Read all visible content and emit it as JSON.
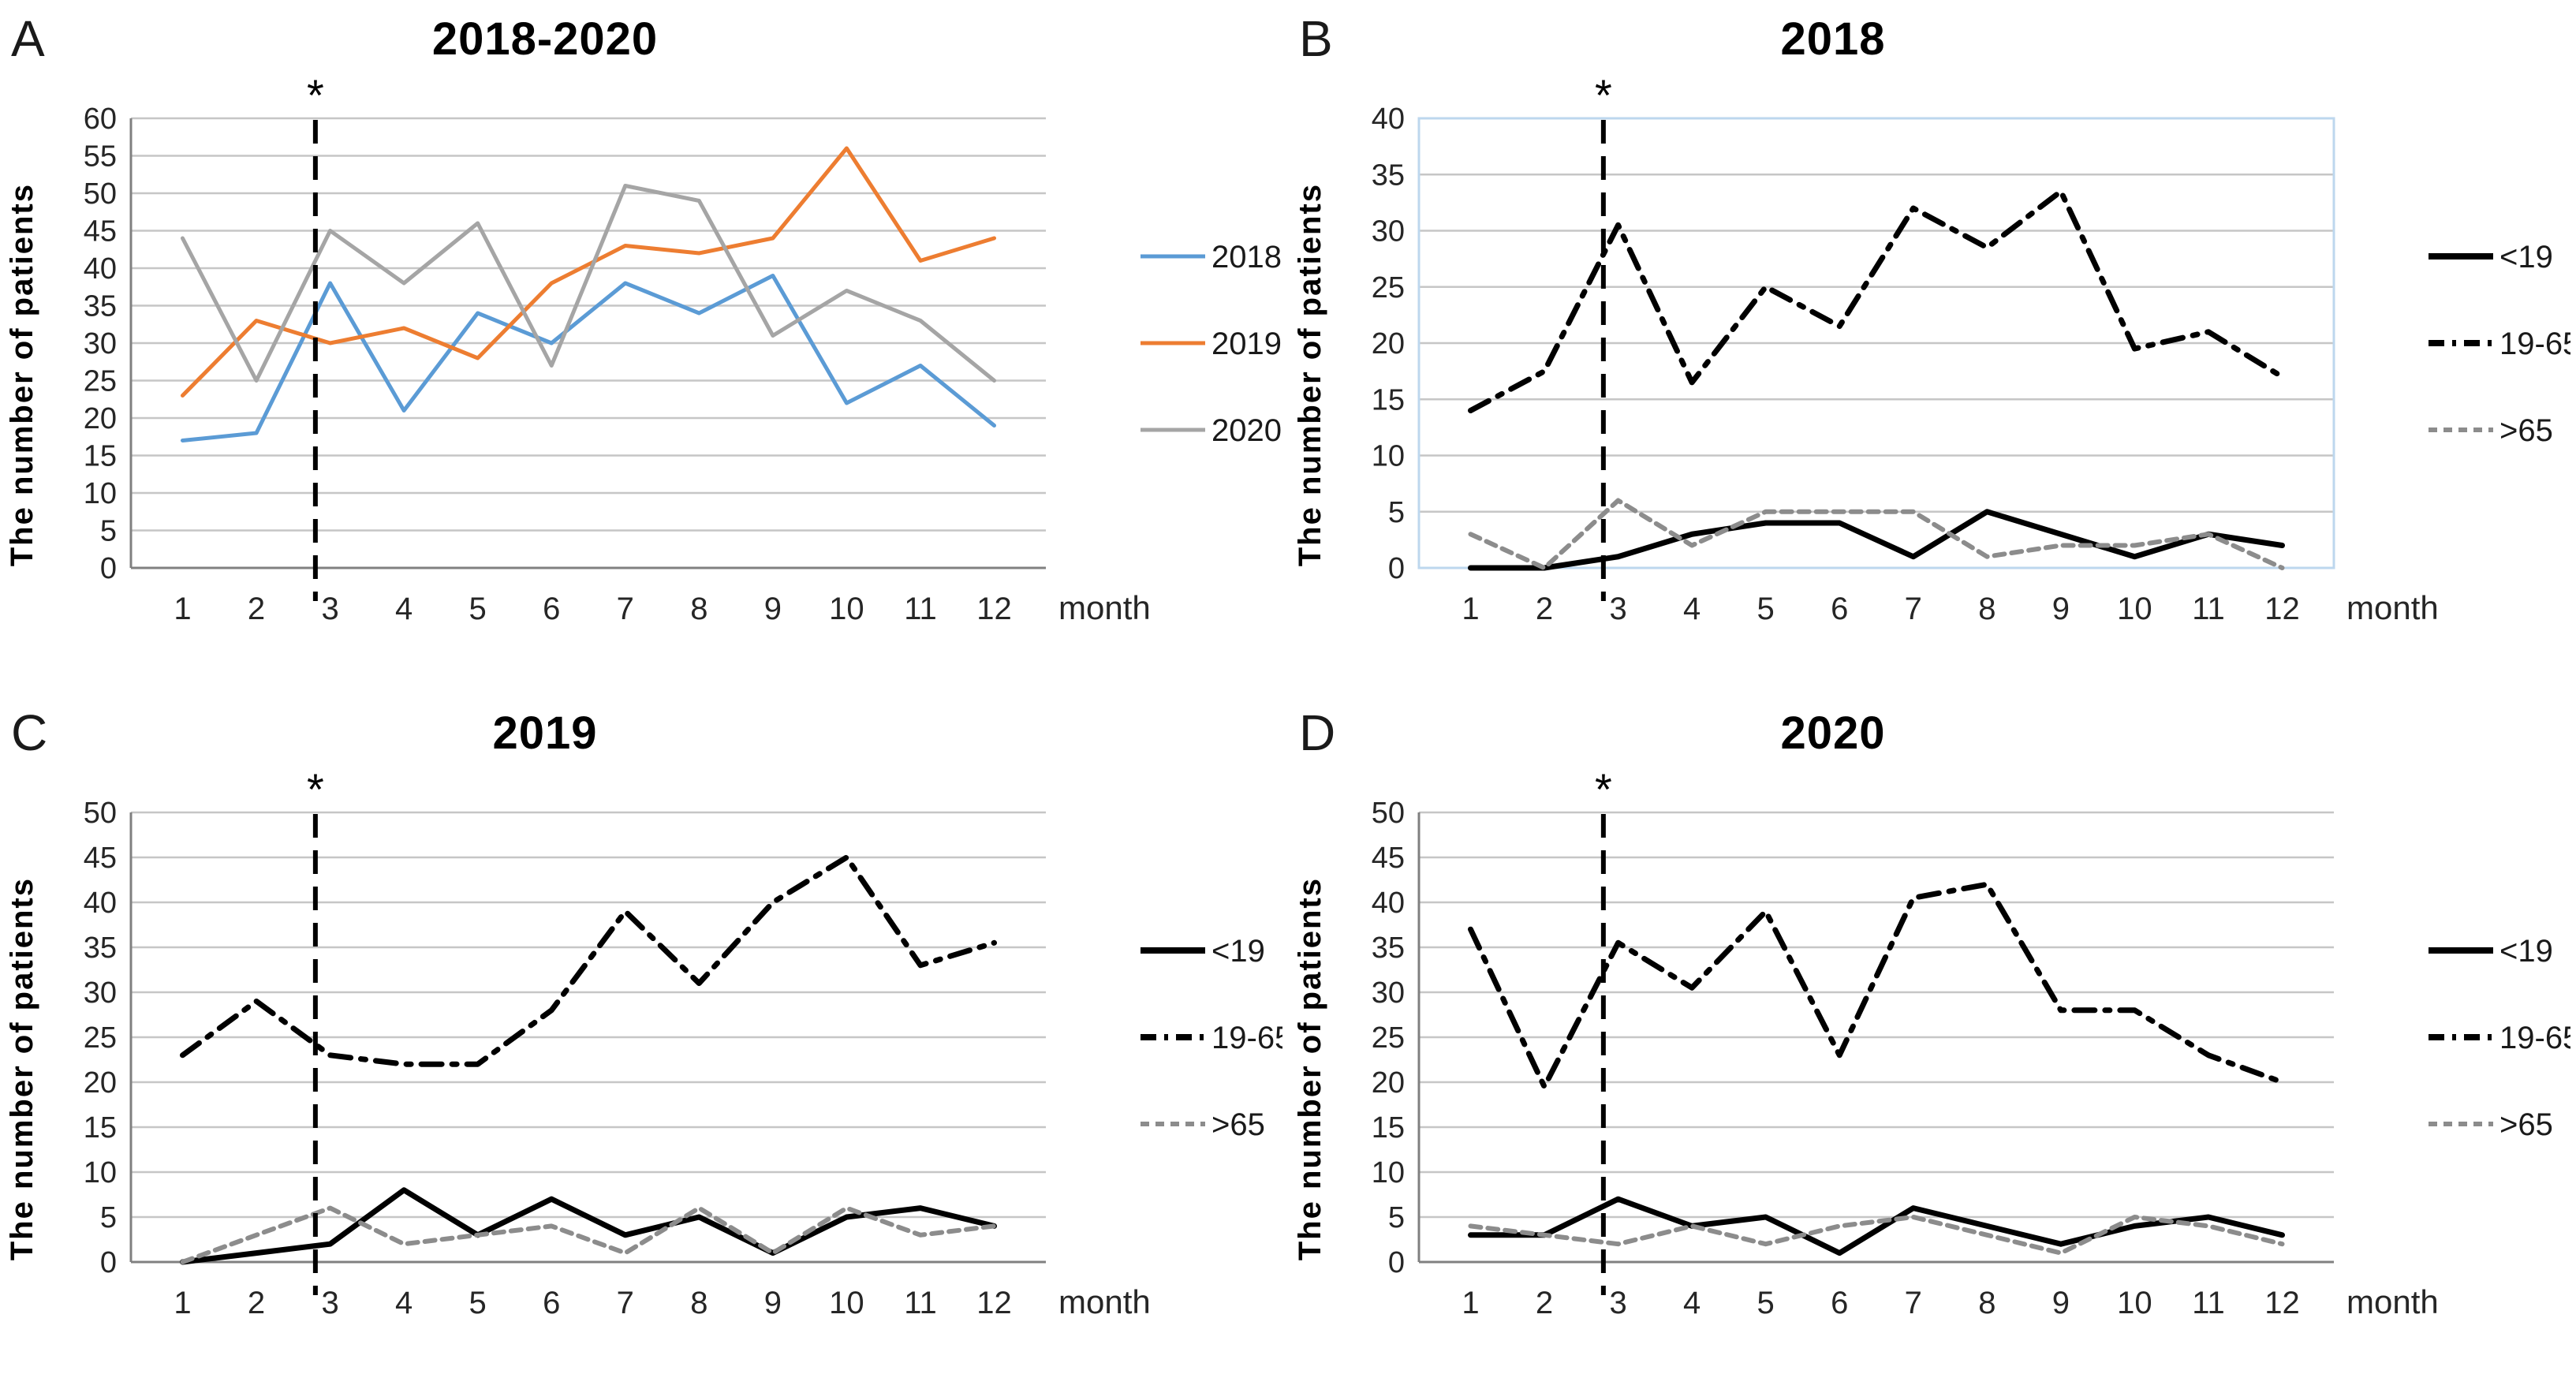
{
  "chart_data": [
    {
      "panel": "A",
      "type": "line",
      "title": "2018-2020",
      "ylabel": "The number of patients",
      "xlabel": "month",
      "x": [
        "1",
        "2",
        "3",
        "4",
        "5",
        "6",
        "7",
        "8",
        "9",
        "10",
        "11",
        "12"
      ],
      "ylim": [
        0,
        60
      ],
      "ytick_step": 5,
      "grid": true,
      "legend_position": "right",
      "annotation": {
        "type": "dashed-vertical-line",
        "x": 2.8,
        "label": "*"
      },
      "series": [
        {
          "name": "2018",
          "color": "#5B9BD5",
          "dash": "solid",
          "values": [
            17,
            18,
            38,
            21,
            34,
            30,
            38,
            34,
            39,
            22,
            27,
            19
          ]
        },
        {
          "name": "2019",
          "color": "#ED7D31",
          "dash": "solid",
          "values": [
            23,
            33,
            30,
            32,
            28,
            38,
            43,
            42,
            44,
            56,
            41,
            44
          ]
        },
        {
          "name": "2020",
          "color": "#A5A5A5",
          "dash": "solid",
          "values": [
            44,
            25,
            45,
            38,
            46,
            27,
            51,
            49,
            31,
            37,
            33,
            25
          ]
        }
      ]
    },
    {
      "panel": "B",
      "type": "line",
      "title": "2018",
      "ylabel": "The number of patients",
      "xlabel": "month",
      "x": [
        "1",
        "2",
        "3",
        "4",
        "5",
        "6",
        "7",
        "8",
        "9",
        "10",
        "11",
        "12"
      ],
      "ylim": [
        0,
        40
      ],
      "ytick_step": 5,
      "grid": true,
      "legend_position": "right",
      "plot_border": "#BDD7EE",
      "annotation": {
        "type": "dashed-vertical-line",
        "x": 2.8,
        "label": "*"
      },
      "series": [
        {
          "name": "<19",
          "color": "#000000",
          "dash": "solid",
          "values": [
            0,
            0,
            1,
            3,
            4,
            4,
            1,
            5,
            3,
            1,
            3,
            2
          ]
        },
        {
          "name": "19-65",
          "color": "#000000",
          "dash": "dashdot",
          "values": [
            14,
            17.5,
            30.5,
            16.5,
            25,
            21.5,
            32,
            28.5,
            33.5,
            19.5,
            21,
            17
          ]
        },
        {
          "name": ">65",
          "color": "#8C8C8C",
          "dash": "dashed",
          "values": [
            3,
            0,
            6,
            2,
            5,
            5,
            5,
            1,
            2,
            2,
            3,
            0
          ]
        }
      ]
    },
    {
      "panel": "C",
      "type": "line",
      "title": "2019",
      "ylabel": "The number of patients",
      "xlabel": "month",
      "x": [
        "1",
        "2",
        "3",
        "4",
        "5",
        "6",
        "7",
        "8",
        "9",
        "10",
        "11",
        "12"
      ],
      "ylim": [
        0,
        50
      ],
      "ytick_step": 5,
      "grid": true,
      "legend_position": "right",
      "annotation": {
        "type": "dashed-vertical-line",
        "x": 2.8,
        "label": "*"
      },
      "series": [
        {
          "name": "<19",
          "color": "#000000",
          "dash": "solid",
          "values": [
            0,
            1,
            2,
            8,
            3,
            7,
            3,
            5,
            1,
            5,
            6,
            4
          ]
        },
        {
          "name": "19-65",
          "color": "#000000",
          "dash": "dashdot",
          "values": [
            23,
            29,
            23,
            22,
            22,
            28,
            39,
            31,
            40,
            45,
            33,
            35.5
          ]
        },
        {
          "name": ">65",
          "color": "#8C8C8C",
          "dash": "dashed",
          "values": [
            0,
            3,
            6,
            2,
            3,
            4,
            1,
            6,
            1,
            6,
            3,
            4
          ]
        }
      ]
    },
    {
      "panel": "D",
      "type": "line",
      "title": "2020",
      "ylabel": "The number of patients",
      "xlabel": "month",
      "x": [
        "1",
        "2",
        "3",
        "4",
        "5",
        "6",
        "7",
        "8",
        "9",
        "10",
        "11",
        "12"
      ],
      "ylim": [
        0,
        50
      ],
      "ytick_step": 5,
      "grid": true,
      "legend_position": "right",
      "annotation": {
        "type": "dashed-vertical-line",
        "x": 2.8,
        "label": "*"
      },
      "series": [
        {
          "name": "<19",
          "color": "#000000",
          "dash": "solid",
          "values": [
            3,
            3,
            7,
            4,
            5,
            1,
            6,
            4,
            2,
            4,
            5,
            3
          ]
        },
        {
          "name": "19-65",
          "color": "#000000",
          "dash": "dashdot",
          "values": [
            37,
            19.5,
            35.5,
            30.5,
            39,
            23,
            40.5,
            42,
            28,
            28,
            23,
            20
          ]
        },
        {
          "name": ">65",
          "color": "#8C8C8C",
          "dash": "dashed",
          "values": [
            4,
            3,
            2,
            4,
            2,
            4,
            5,
            3,
            1,
            5,
            4,
            2
          ]
        }
      ]
    }
  ],
  "style_colors": {
    "gridline": "#C6C6C6",
    "axis": "#808080",
    "tick_text": "#262626",
    "annotation_line": "#000000"
  }
}
